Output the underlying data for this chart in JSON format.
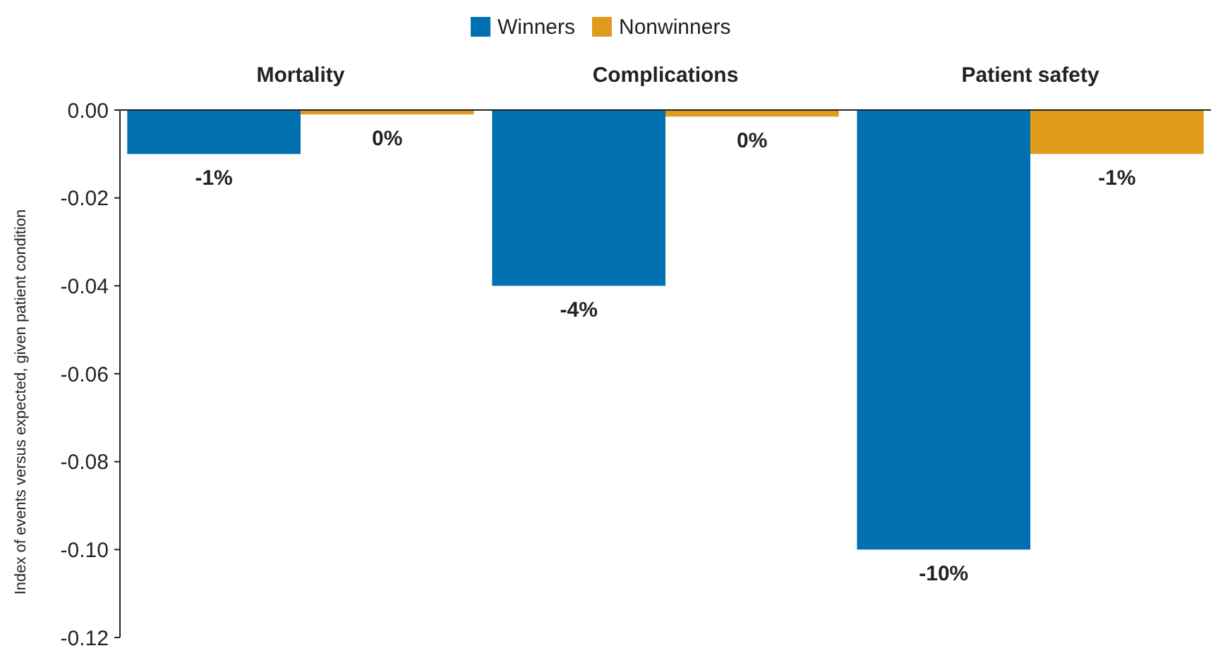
{
  "chart_data": {
    "type": "bar",
    "ylabel": "Index of events versus expected, given patient condition",
    "categories": [
      "Mortality",
      "Complications",
      "Patient safety"
    ],
    "series": [
      {
        "name": "Winners",
        "color": "#0070b0",
        "values": [
          -0.01,
          -0.04,
          -0.1
        ],
        "value_labels": [
          "-1%",
          "-4%",
          "-10%"
        ]
      },
      {
        "name": "Nonwinners",
        "color": "#e09a1c",
        "values": [
          -0.001,
          -0.0015,
          -0.01
        ],
        "value_labels": [
          "0%",
          "0%",
          "-1%"
        ]
      }
    ],
    "ylim": [
      -0.12,
      0
    ],
    "yticks": [
      {
        "value": 0,
        "label": "0.00"
      },
      {
        "value": -0.02,
        "label": "-0.02"
      },
      {
        "value": -0.04,
        "label": "-0.04"
      },
      {
        "value": -0.06,
        "label": "-0.06"
      },
      {
        "value": -0.08,
        "label": "-0.08"
      },
      {
        "value": -0.1,
        "label": "-0.10"
      },
      {
        "value": -0.12,
        "label": "-0.12"
      }
    ],
    "grid": false,
    "legend": "top"
  }
}
